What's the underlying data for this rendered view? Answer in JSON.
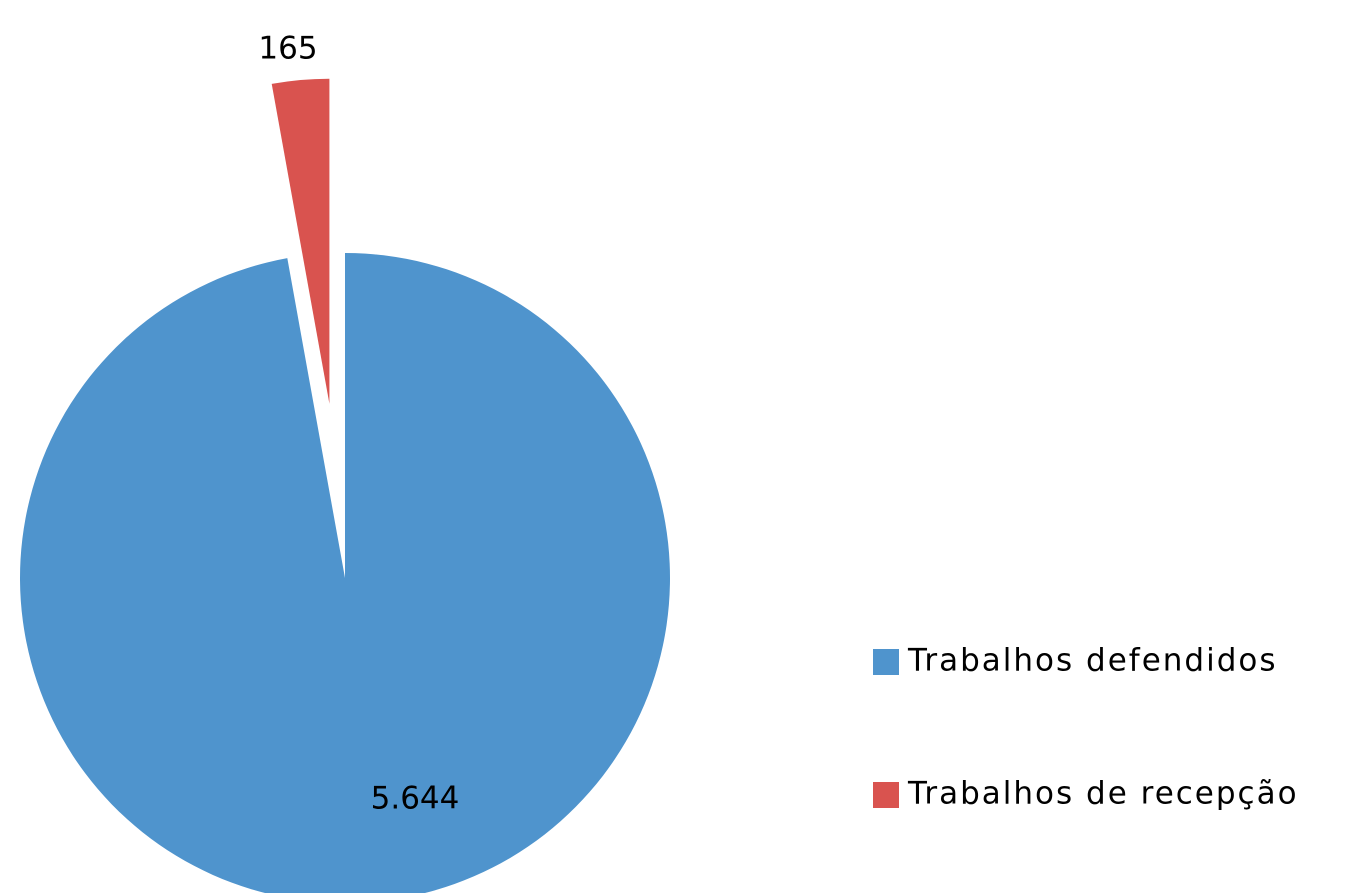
{
  "chart_data": {
    "type": "pie",
    "categories": [
      "Trabalhos defendidos",
      "Trabalhos de recepção"
    ],
    "values": [
      5644,
      165
    ],
    "value_labels": [
      "5.644",
      "165"
    ],
    "colors": [
      "#4f94cd",
      "#d9534f"
    ],
    "legend": "right"
  }
}
